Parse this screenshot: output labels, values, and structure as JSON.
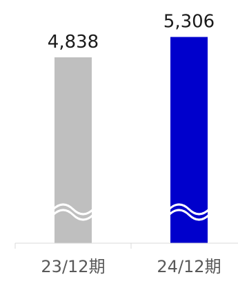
{
  "chart_data": {
    "type": "bar",
    "categories": [
      "23/12期",
      "24/12期"
    ],
    "values": [
      4838,
      5306
    ],
    "value_labels": [
      "4,838",
      "5,306"
    ],
    "colors": [
      "#bfbfbf",
      "#0000cc"
    ],
    "axis_break": true,
    "title": "",
    "xlabel": "",
    "ylabel": "",
    "grid": false,
    "legend": "none"
  }
}
